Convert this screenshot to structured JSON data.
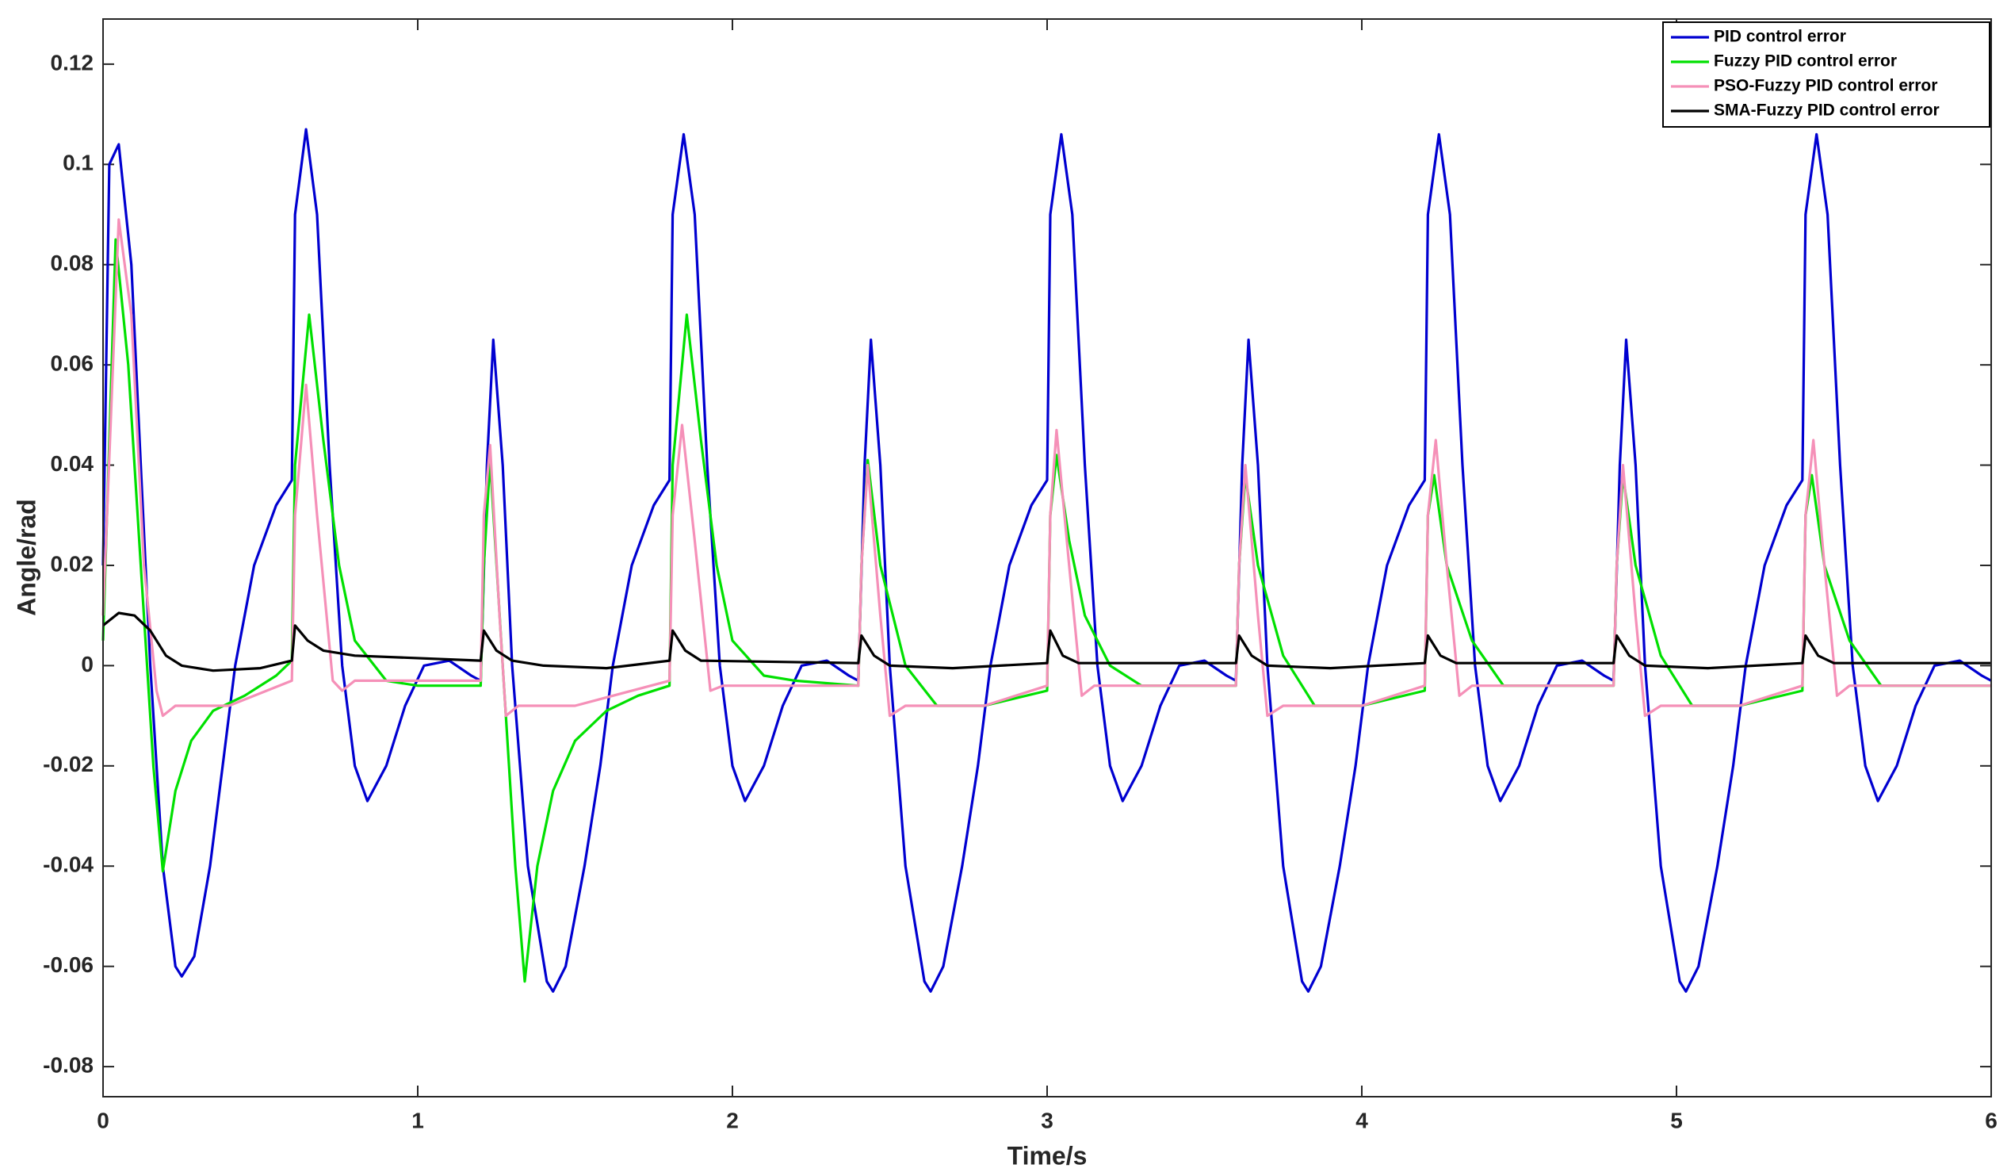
{
  "chart_data": {
    "type": "line",
    "xlabel": "Time/s",
    "ylabel": "Angle/rad",
    "xlim": [
      0,
      6
    ],
    "ylim": [
      -0.086,
      0.129
    ],
    "xticks": [
      0,
      1,
      2,
      3,
      4,
      5,
      6
    ],
    "yticks": [
      -0.08,
      -0.06,
      -0.04,
      -0.02,
      0,
      0.02,
      0.04,
      0.06,
      0.08,
      0.1,
      0.12
    ],
    "grid": false,
    "legend": "upper right",
    "series": [
      {
        "name": "PID control error",
        "color": "#0000d0",
        "x": [
          0,
          0.02,
          0.05,
          0.09,
          0.12,
          0.15,
          0.19,
          0.23,
          0.25,
          0.29,
          0.34,
          0.38,
          0.42,
          0.48,
          0.55,
          0.6,
          0.61,
          0.645,
          0.68,
          0.72,
          0.76,
          0.8,
          0.84,
          0.9,
          0.96,
          1.02,
          1.1,
          1.17,
          1.2,
          1.22,
          1.24,
          1.27,
          1.3,
          1.35,
          1.41,
          1.43,
          1.47,
          1.53,
          1.58,
          1.62,
          1.68,
          1.75,
          1.8,
          1.81,
          1.845,
          1.88,
          1.92,
          1.96,
          2,
          2.04,
          2.1,
          2.16,
          2.22,
          2.3,
          2.37,
          2.4,
          2.42,
          2.44,
          2.47,
          2.5,
          2.55,
          2.61,
          2.63,
          2.67,
          2.73,
          2.78,
          2.82,
          2.88,
          2.95,
          3,
          3.01,
          3.045,
          3.08,
          3.12,
          3.16,
          3.2,
          3.24,
          3.3,
          3.36,
          3.42,
          3.5,
          3.57,
          3.6,
          3.62,
          3.64,
          3.67,
          3.7,
          3.75,
          3.81,
          3.83,
          3.87,
          3.93,
          3.98,
          4.02,
          4.08,
          4.15,
          4.2,
          4.21,
          4.245,
          4.28,
          4.32,
          4.36,
          4.4,
          4.44,
          4.5,
          4.56,
          4.62,
          4.7,
          4.77,
          4.8,
          4.82,
          4.84,
          4.87,
          4.9,
          4.95,
          5.01,
          5.03,
          5.07,
          5.13,
          5.18,
          5.22,
          5.28,
          5.35,
          5.4,
          5.41,
          5.445,
          5.48,
          5.52,
          5.56,
          5.6,
          5.64,
          5.7,
          5.76,
          5.82,
          5.9,
          5.97,
          6
        ],
        "values": [
          0.02,
          0.1,
          0.104,
          0.08,
          0.04,
          0,
          -0.04,
          -0.06,
          -0.062,
          -0.058,
          -0.04,
          -0.02,
          0,
          0.02,
          0.032,
          0.037,
          0.09,
          0.107,
          0.09,
          0.04,
          0,
          -0.02,
          -0.027,
          -0.02,
          -0.008,
          0,
          0.001,
          -0.002,
          -0.003,
          0.04,
          0.065,
          0.04,
          0,
          -0.04,
          -0.063,
          -0.065,
          -0.06,
          -0.04,
          -0.02,
          0,
          0.02,
          0.032,
          0.037,
          0.09,
          0.106,
          0.09,
          0.04,
          0,
          -0.02,
          -0.027,
          -0.02,
          -0.008,
          0,
          0.001,
          -0.002,
          -0.003,
          0.04,
          0.065,
          0.04,
          0,
          -0.04,
          -0.063,
          -0.065,
          -0.06,
          -0.04,
          -0.02,
          0,
          0.02,
          0.032,
          0.037,
          0.09,
          0.106,
          0.09,
          0.04,
          0,
          -0.02,
          -0.027,
          -0.02,
          -0.008,
          0,
          0.001,
          -0.002,
          -0.003,
          0.04,
          0.065,
          0.04,
          0,
          -0.04,
          -0.063,
          -0.065,
          -0.06,
          -0.04,
          -0.02,
          0,
          0.02,
          0.032,
          0.037,
          0.09,
          0.106,
          0.09,
          0.04,
          0,
          -0.02,
          -0.027,
          -0.02,
          -0.008,
          0,
          0.001,
          -0.002,
          -0.003,
          0.04,
          0.065,
          0.04,
          0,
          -0.04,
          -0.063,
          -0.065,
          -0.06,
          -0.04,
          -0.02,
          0,
          0.02,
          0.032,
          0.037,
          0.09,
          0.106,
          0.09,
          0.04,
          0,
          -0.02,
          -0.027,
          -0.02,
          -0.008,
          0,
          0.001,
          -0.002,
          -0.003
        ]
      },
      {
        "name": "Fuzzy PID control error",
        "color": "#00e000",
        "x": [
          0,
          0.04,
          0.08,
          0.12,
          0.16,
          0.19,
          0.23,
          0.28,
          0.35,
          0.45,
          0.55,
          0.6,
          0.61,
          0.655,
          0.7,
          0.75,
          0.8,
          0.9,
          1,
          1.2,
          1.21,
          1.23,
          1.27,
          1.31,
          1.34,
          1.38,
          1.43,
          1.5,
          1.6,
          1.7,
          1.8,
          1.81,
          1.855,
          1.9,
          1.95,
          2,
          2.1,
          2.2,
          2.4,
          2.41,
          2.43,
          2.47,
          2.55,
          2.65,
          2.8,
          3,
          3.01,
          3.03,
          3.07,
          3.12,
          3.2,
          3.3,
          3.6,
          3.61,
          3.63,
          3.67,
          3.75,
          3.85,
          4,
          4.2,
          4.21,
          4.23,
          4.27,
          4.35,
          4.45,
          4.8,
          4.81,
          4.83,
          4.87,
          4.95,
          5.05,
          5.2,
          5.4,
          5.41,
          5.43,
          5.47,
          5.55,
          5.65,
          6
        ],
        "values": [
          0.005,
          0.085,
          0.06,
          0.02,
          -0.02,
          -0.041,
          -0.025,
          -0.015,
          -0.009,
          -0.006,
          -0.002,
          0.001,
          0.04,
          0.07,
          0.045,
          0.02,
          0.005,
          -0.003,
          -0.004,
          -0.004,
          0.02,
          0.041,
          0,
          -0.04,
          -0.063,
          -0.04,
          -0.025,
          -0.015,
          -0.009,
          -0.006,
          -0.004,
          0.04,
          0.07,
          0.045,
          0.02,
          0.005,
          -0.002,
          -0.003,
          -0.004,
          0.02,
          0.041,
          0.02,
          0,
          -0.008,
          -0.008,
          -0.005,
          0.03,
          0.042,
          0.025,
          0.01,
          0,
          -0.004,
          -0.004,
          0.02,
          0.038,
          0.02,
          0.002,
          -0.008,
          -0.008,
          -0.005,
          0.03,
          0.038,
          0.02,
          0.005,
          -0.004,
          -0.004,
          0.02,
          0.038,
          0.02,
          0.002,
          -0.008,
          -0.008,
          -0.005,
          0.03,
          0.038,
          0.02,
          0.005,
          -0.004,
          -0.004
        ]
      },
      {
        "name": "PSO-Fuzzy PID control error",
        "color": "#f590b8",
        "x": [
          0,
          0.05,
          0.09,
          0.13,
          0.17,
          0.19,
          0.23,
          0.4,
          0.6,
          0.61,
          0.645,
          0.68,
          0.73,
          0.76,
          0.8,
          1.2,
          1.21,
          1.23,
          1.26,
          1.28,
          1.32,
          1.5,
          1.8,
          1.81,
          1.84,
          1.88,
          1.93,
          1.97,
          2.4,
          2.41,
          2.43,
          2.47,
          2.5,
          2.55,
          2.8,
          3,
          3.01,
          3.03,
          3.07,
          3.11,
          3.15,
          3.6,
          3.61,
          3.63,
          3.67,
          3.7,
          3.75,
          4,
          4.2,
          4.21,
          4.235,
          4.27,
          4.31,
          4.35,
          4.8,
          4.81,
          4.83,
          4.87,
          4.9,
          4.95,
          5.2,
          5.4,
          5.41,
          5.435,
          5.47,
          5.51,
          5.55,
          6
        ],
        "values": [
          0.01,
          0.089,
          0.07,
          0.02,
          -0.005,
          -0.01,
          -0.008,
          -0.008,
          -0.003,
          0.03,
          0.056,
          0.03,
          -0.003,
          -0.005,
          -0.003,
          -0.003,
          0.03,
          0.044,
          0.01,
          -0.01,
          -0.008,
          -0.008,
          -0.003,
          0.03,
          0.048,
          0.025,
          -0.005,
          -0.004,
          -0.004,
          0.02,
          0.04,
          0.01,
          -0.01,
          -0.008,
          -0.008,
          -0.004,
          0.03,
          0.047,
          0.02,
          -0.006,
          -0.004,
          -0.004,
          0.02,
          0.04,
          0.01,
          -0.01,
          -0.008,
          -0.008,
          -0.004,
          0.03,
          0.045,
          0.02,
          -0.006,
          -0.004,
          -0.004,
          0.02,
          0.04,
          0.01,
          -0.01,
          -0.008,
          -0.008,
          -0.004,
          0.03,
          0.045,
          0.02,
          -0.006,
          -0.004,
          -0.004
        ]
      },
      {
        "name": "SMA-Fuzzy PID control error",
        "color": "#000000",
        "x": [
          0,
          0.05,
          0.1,
          0.15,
          0.2,
          0.25,
          0.35,
          0.5,
          0.6,
          0.61,
          0.65,
          0.7,
          0.8,
          1.2,
          1.21,
          1.25,
          1.3,
          1.4,
          1.6,
          1.8,
          1.81,
          1.85,
          1.9,
          2.4,
          2.41,
          2.45,
          2.5,
          2.7,
          3,
          3.01,
          3.05,
          3.1,
          3.6,
          3.61,
          3.65,
          3.7,
          3.9,
          4.2,
          4.21,
          4.25,
          4.3,
          4.8,
          4.81,
          4.85,
          4.9,
          5.1,
          5.4,
          5.41,
          5.45,
          5.5,
          6
        ],
        "values": [
          0.008,
          0.0105,
          0.01,
          0.007,
          0.002,
          0,
          -0.001,
          -0.0005,
          0.001,
          0.008,
          0.005,
          0.003,
          0.002,
          0.001,
          0.007,
          0.003,
          0.001,
          0,
          -0.0005,
          0.001,
          0.007,
          0.003,
          0.001,
          0.0005,
          0.006,
          0.002,
          0,
          -0.0005,
          0.0005,
          0.007,
          0.002,
          0.0005,
          0.0005,
          0.006,
          0.002,
          0,
          -0.0005,
          0.0005,
          0.006,
          0.002,
          0.0005,
          0.0005,
          0.006,
          0.002,
          0,
          -0.0005,
          0.0005,
          0.006,
          0.002,
          0.0005,
          0.0005
        ]
      }
    ]
  }
}
